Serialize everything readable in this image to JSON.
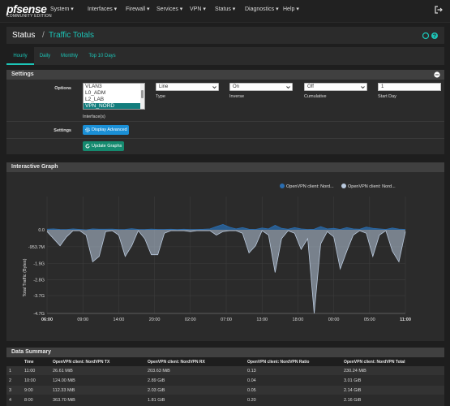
{
  "header": {
    "logo_text": "pfsense",
    "logo_sub": "COMMUNITY EDITION",
    "nav": [
      {
        "label": "System ▾"
      },
      {
        "label": "Interfaces ▾"
      },
      {
        "label": "Firewall ▾"
      },
      {
        "label": "Services ▾"
      },
      {
        "label": "VPN ▾"
      },
      {
        "label": "Status ▾"
      },
      {
        "label": "Diagnostics ▾"
      },
      {
        "label": "Help ▾"
      }
    ]
  },
  "breadcrumb": {
    "section": "Status",
    "sep": "/",
    "page": "Traffic Totals"
  },
  "tabs": [
    {
      "label": "Hourly",
      "active": true
    },
    {
      "label": "Daily"
    },
    {
      "label": "Monthly"
    },
    {
      "label": "Top 10 Days"
    }
  ],
  "settings": {
    "title": "Settings",
    "options_label": "Options",
    "interfaces": [
      "VLAN3",
      "L0_ADM",
      "L2_LAB",
      "VPN_NORD"
    ],
    "interfaces_selected": "VPN_NORD",
    "interfaces_label": "Interface(s)",
    "type": {
      "value": "Line",
      "label": "Type"
    },
    "inverse": {
      "value": "On",
      "label": "Inverse"
    },
    "cumulative": {
      "value": "Off",
      "label": "Cumulative"
    },
    "start_day": {
      "value": "1",
      "label": "Start Day"
    },
    "settings_label": "Settings",
    "display_advanced": "Display Advanced",
    "update_graphs": "Update Graphs"
  },
  "graph": {
    "title": "Interactive Graph",
    "legend": [
      "OpenVPN client: Nord...",
      "OpenVPN client: Nord..."
    ]
  },
  "chart_data": {
    "type": "area",
    "ylabel": "Total Traffic (Bytes)",
    "y_ticks": [
      "0.0",
      "-953.7M",
      "-1.9G",
      "-2.8G",
      "-3.7G",
      "-4.7G"
    ],
    "x_ticks": [
      "06:00",
      "09:00",
      "14:00",
      "20:00",
      "02:00",
      "07:00",
      "13:00",
      "18:00",
      "00:00",
      "05:00",
      "11:00"
    ],
    "ylim": [
      -4.7,
      0.5
    ],
    "series": [
      {
        "name": "OpenVPN client: Nord...",
        "color": "#2a6db0",
        "values": [
          0.03,
          0.05,
          0.02,
          0.01,
          0.05,
          0.02,
          0.0,
          0.05,
          0.03,
          0.03,
          0.04,
          0.01,
          0.02,
          0.06,
          0.02,
          0.01,
          0.04,
          0.02,
          0.02,
          0.03,
          0.01,
          0.03,
          0.01,
          0.02,
          0.03,
          0.05,
          0.18,
          0.3,
          0.15,
          0.05,
          0.12,
          0.03,
          0.02,
          0.1,
          0.05,
          0.25,
          0.08,
          0.03,
          0.12,
          0.05,
          0.02,
          0.03,
          0.18,
          0.05,
          0.08,
          0.02,
          0.12,
          0.05,
          0.03,
          0.15,
          0.08,
          0.05,
          0.02,
          0.1,
          0.04,
          0.02
        ]
      },
      {
        "name": "OpenVPN client: Nord...",
        "color": "#b8c8dc",
        "values": [
          -0.1,
          -0.5,
          -0.9,
          -0.4,
          -0.05,
          -0.05,
          -0.3,
          -1.8,
          -1.5,
          -0.1,
          -0.05,
          -0.3,
          -1.5,
          -0.9,
          -0.05,
          -0.5,
          -1.4,
          -1.4,
          -0.2,
          -0.05,
          -0.05,
          -0.05,
          -0.1,
          -0.05,
          -0.05,
          -0.05,
          -0.3,
          -0.1,
          -0.05,
          -0.05,
          -0.2,
          -1.3,
          -0.9,
          -0.05,
          -0.3,
          -2.4,
          -0.5,
          -0.05,
          -0.2,
          -1.1,
          -0.5,
          -4.7,
          -0.8,
          -0.1,
          -0.4,
          -2.2,
          -1.2,
          -0.3,
          -0.05,
          -0.2,
          -1.5,
          -0.3,
          -0.05,
          -1.2,
          -1.8,
          -0.1
        ]
      }
    ]
  },
  "summary": {
    "title": "Data Summary",
    "columns": [
      "Time",
      "OpenVPN client: NordVPN TX",
      "OpenVPN client: NordVPN RX",
      "OpenVPN client: NordVPN Ratio",
      "OpenVPN client: NordVPN Total"
    ],
    "rows": [
      [
        "1",
        "11:00",
        "26.61 MiB",
        "203.63 MiB",
        "0.13",
        "230.24 MiB"
      ],
      [
        "2",
        "10:00",
        "124.00 MiB",
        "2.89 GiB",
        "0.04",
        "3.01 GiB"
      ],
      [
        "3",
        "9:00",
        "112.33 MiB",
        "2.03 GiB",
        "0.05",
        "2.14 GiB"
      ],
      [
        "4",
        "8:00",
        "363.70 MiB",
        "1.81 GiB",
        "0.20",
        "2.16 GiB"
      ]
    ]
  }
}
